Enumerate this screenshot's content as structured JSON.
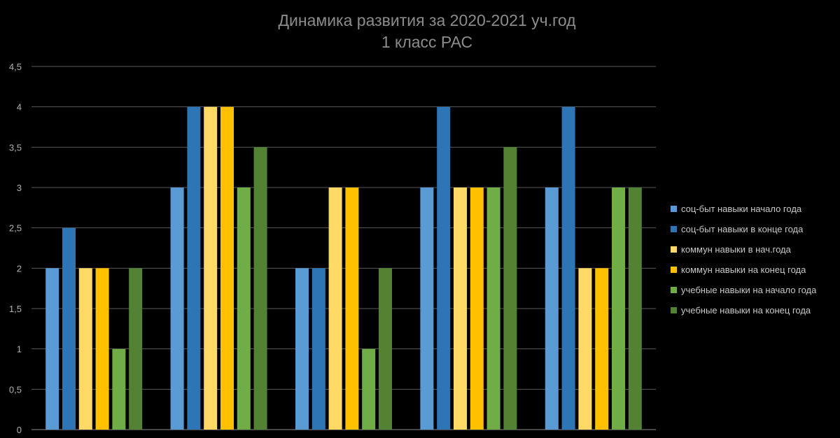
{
  "chart_data": {
    "type": "bar",
    "title": "Динамика развития за 2020-2021 уч.год",
    "subtitle": "1 класс РАС",
    "categories": [
      "",
      "",
      "",
      "",
      ""
    ],
    "series": [
      {
        "name": "соц-быт навыки начало года",
        "color": "#5b9bd5",
        "values": [
          2,
          3,
          2,
          3,
          3
        ]
      },
      {
        "name": "соц-быт навыки в конце года",
        "color": "#2e75b6",
        "values": [
          2.5,
          4,
          2,
          4,
          4
        ]
      },
      {
        "name": "коммун навыки в нач.года",
        "color": "#ffd966",
        "values": [
          2,
          4,
          3,
          3,
          2
        ]
      },
      {
        "name": "коммун навыки на конец года",
        "color": "#ffc000",
        "values": [
          2,
          4,
          3,
          3,
          2
        ]
      },
      {
        "name": "учебные навыки на начало года",
        "color": "#70ad47",
        "values": [
          1,
          3,
          1,
          3,
          3
        ]
      },
      {
        "name": "учебные навыки на конец года",
        "color": "#548235",
        "values": [
          2,
          3.5,
          2,
          3.5,
          3
        ]
      }
    ],
    "yticks": [
      "0",
      "0,5",
      "1",
      "1,5",
      "2",
      "2,5",
      "3",
      "3,5",
      "4",
      "4,5"
    ],
    "ylim": [
      0,
      4.5
    ],
    "grid": true,
    "legend_position": "right"
  }
}
